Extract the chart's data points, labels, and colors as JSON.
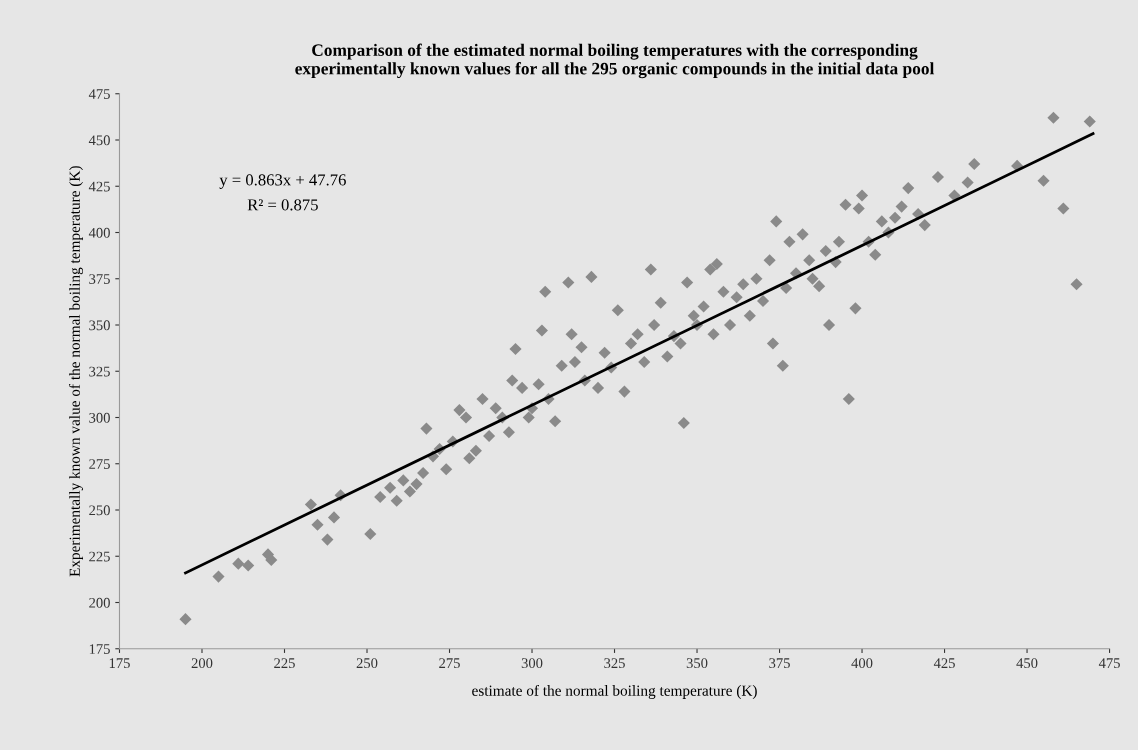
{
  "chart_data": {
    "type": "scatter",
    "title": "Comparison of the estimated normal boiling temperatures with the corresponding\nexperimentally known values for all the 295 organic compounds in the initial data pool",
    "xlabel": "estimate of the normal boiling temperature (K)",
    "ylabel": "Experimentally known value of the normal boiling temperature (K)",
    "annotations": [
      "y = 0.863x + 47.76",
      "R² = 0.875"
    ],
    "xlim": [
      175,
      475
    ],
    "xticks": [
      175,
      200,
      225,
      250,
      275,
      300,
      325,
      350,
      375,
      400,
      425,
      450,
      475
    ],
    "ylim": [
      175,
      475
    ],
    "yticks": [
      175,
      200,
      225,
      250,
      275,
      300,
      325,
      350,
      375,
      400,
      425,
      450,
      475
    ],
    "grid": false,
    "legend": false,
    "series": [
      {
        "marker": "diamond",
        "color": "#8a8a8a",
        "x": [
          195,
          205,
          211,
          214,
          220,
          221,
          233,
          235,
          238,
          240,
          242,
          251,
          254,
          257,
          259,
          261,
          263,
          265,
          267,
          268,
          270,
          272,
          274,
          276,
          278,
          280,
          281,
          283,
          285,
          287,
          289,
          291,
          293,
          294,
          295,
          297,
          299,
          300,
          302,
          303,
          304,
          305,
          307,
          309,
          311,
          312,
          313,
          315,
          316,
          318,
          320,
          322,
          324,
          326,
          328,
          330,
          332,
          334,
          336,
          337,
          339,
          341,
          343,
          345,
          346,
          347,
          349,
          350,
          352,
          354,
          355,
          356,
          358,
          360,
          362,
          364,
          366,
          368,
          370,
          372,
          373,
          374,
          376,
          377,
          378,
          380,
          382,
          384,
          385,
          387,
          389,
          390,
          392,
          393,
          395,
          396,
          398,
          399,
          400,
          402,
          404,
          406,
          408,
          410,
          412,
          414,
          417,
          419,
          423,
          428,
          432,
          434,
          447,
          455,
          458,
          461,
          465,
          469
        ],
        "values": [
          191,
          214,
          221,
          220,
          226,
          223,
          253,
          242,
          234,
          246,
          258,
          237,
          257,
          262,
          255,
          266,
          260,
          264,
          270,
          294,
          279,
          283,
          272,
          287,
          304,
          300,
          278,
          282,
          310,
          290,
          305,
          300,
          292,
          320,
          337,
          316,
          300,
          305,
          318,
          347,
          368,
          310,
          298,
          328,
          373,
          345,
          330,
          338,
          320,
          376,
          316,
          335,
          327,
          358,
          314,
          340,
          345,
          330,
          380,
          350,
          362,
          333,
          344,
          340,
          297,
          373,
          355,
          350,
          360,
          380,
          345,
          383,
          368,
          350,
          365,
          372,
          355,
          375,
          363,
          385,
          340,
          406,
          328,
          370,
          395,
          378,
          399,
          385,
          375,
          371,
          390,
          350,
          384,
          395,
          415,
          310,
          359,
          413,
          420,
          395,
          388,
          406,
          400,
          408,
          414,
          424,
          410,
          404,
          430,
          420,
          427,
          437,
          436,
          428,
          462,
          413,
          372,
          460
        ]
      },
      {
        "type": "line",
        "color": "#000000",
        "line_style": "solid",
        "marker": "none",
        "x": [
          195,
          470
        ],
        "values": [
          216,
          453.4
        ]
      }
    ]
  }
}
